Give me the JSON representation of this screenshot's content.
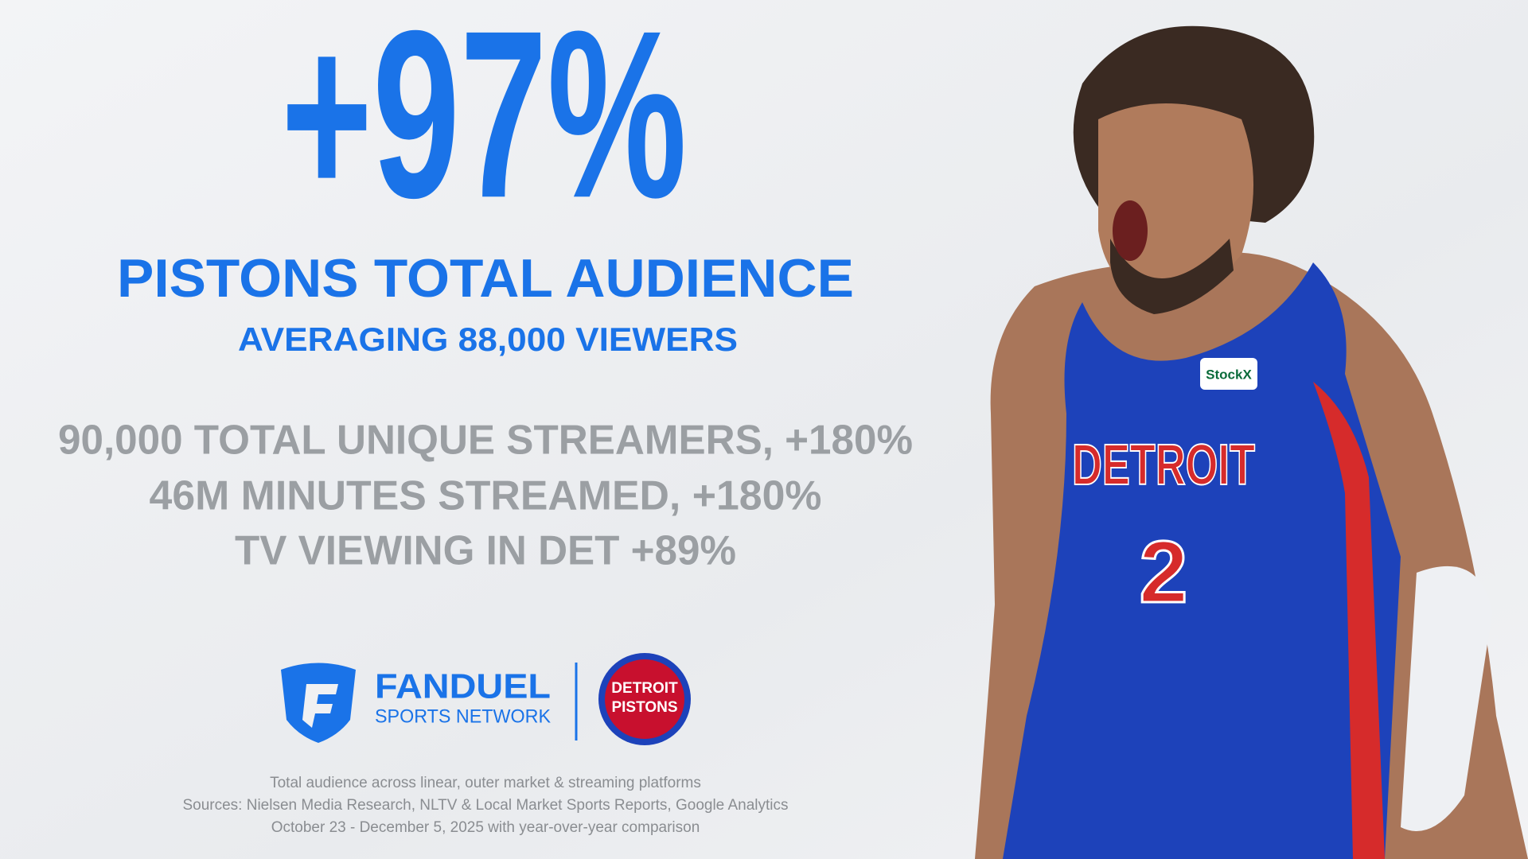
{
  "headline": {
    "stat": "+97%",
    "title": "PISTONS TOTAL AUDIENCE",
    "subtitle": "AVERAGING 88,000 VIEWERS"
  },
  "stats": [
    "90,000 TOTAL UNIQUE STREAMERS, +180%",
    "46M MINUTES STREAMED, +180%",
    "TV VIEWING IN DET +89%"
  ],
  "logos": {
    "network_name": "FANDUEL",
    "network_sub": "SPORTS NETWORK",
    "team_line1": "DETROIT",
    "team_line2": "PISTONS"
  },
  "footnotes": [
    "Total audience across linear, outer market & streaming platforms",
    "Sources: Nielsen Media Research, NLTV & Local Market Sports Reports, Google Analytics",
    "October 23 - December 5, 2025 with year-over-year comparison"
  ],
  "player": {
    "jersey_text": "DETROIT",
    "jersey_number": "2",
    "patch": "StockX"
  }
}
